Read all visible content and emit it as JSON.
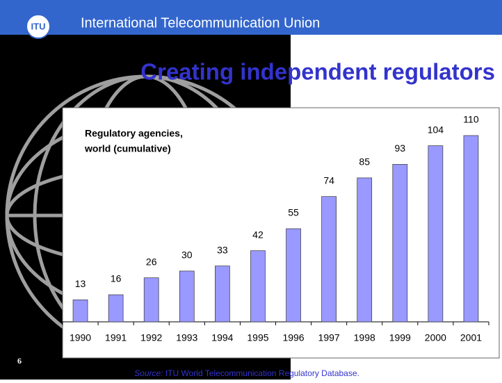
{
  "header": {
    "logo": "ITU",
    "org": "International Telecommunication Union"
  },
  "slide": {
    "title": "Creating independent regulators",
    "number": "6"
  },
  "source": {
    "prefix": "Source:",
    "text": " ITU World Telecommunication Regulatory Database."
  },
  "chart_data": {
    "type": "bar",
    "title_lines": [
      "Regulatory agencies,",
      "world (cumulative)"
    ],
    "categories": [
      "1990",
      "1991",
      "1992",
      "1993",
      "1994",
      "1995",
      "1996",
      "1997",
      "1998",
      "1999",
      "2000",
      "2001"
    ],
    "values": [
      13,
      16,
      26,
      30,
      33,
      42,
      55,
      74,
      85,
      93,
      104,
      110
    ],
    "color": "#9999ff"
  }
}
